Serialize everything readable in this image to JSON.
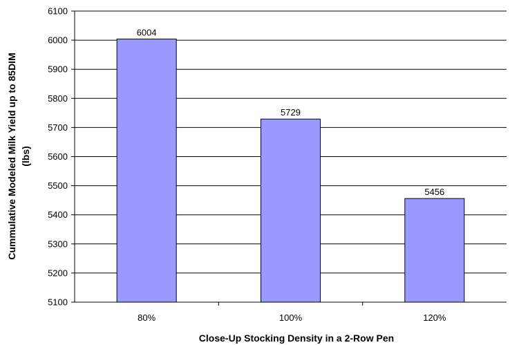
{
  "chart_data": {
    "type": "bar",
    "categories": [
      "80%",
      "100%",
      "120%"
    ],
    "values": [
      6004,
      5729,
      5456
    ],
    "data_labels": [
      "6004",
      "5729",
      "5456"
    ],
    "xlabel": "Close-Up Stocking Density in a 2-Row Pen",
    "ylabel_lines": [
      "Cummulative Modeled Milk Yield up to 85DIM",
      "(lbs)"
    ],
    "ylim": [
      5100,
      6100
    ],
    "yticks": [
      5100,
      5200,
      5300,
      5400,
      5500,
      5600,
      5700,
      5800,
      5900,
      6000,
      6100
    ],
    "grid": true,
    "legend": "none",
    "colors": {
      "bar_fill": "#9999ff",
      "bar_stroke": "#000000",
      "grid": "#000000"
    }
  }
}
